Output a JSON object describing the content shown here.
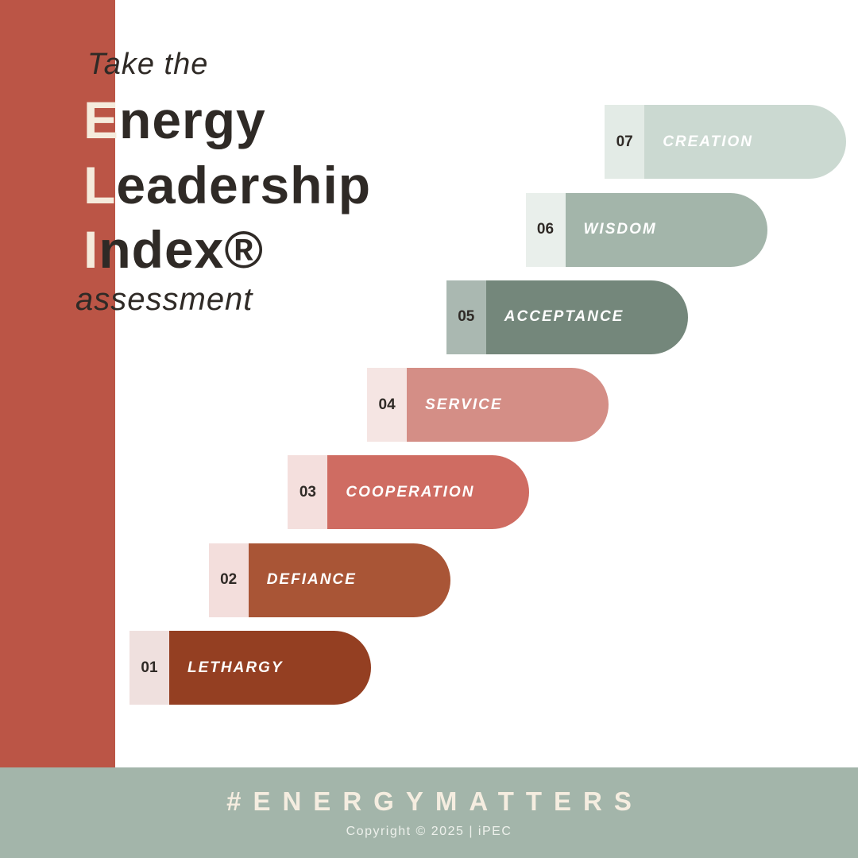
{
  "header": {
    "intro": "Take the",
    "title_lines": [
      "Energy",
      "Leadership",
      "Index®"
    ],
    "outro": "assessment"
  },
  "steps": [
    {
      "number": "01",
      "label": "LETHARGY",
      "color": "#943f22",
      "tab_color": "#efe0de"
    },
    {
      "number": "02",
      "label": "DEFIANCE",
      "color": "#a95536",
      "tab_color": "#f3dedc"
    },
    {
      "number": "03",
      "label": "COOPERATION",
      "color": "#cf6c62",
      "tab_color": "#f4dfdd"
    },
    {
      "number": "04",
      "label": "SERVICE",
      "color": "#d48e86",
      "tab_color": "#f5e5e3"
    },
    {
      "number": "05",
      "label": "ACCEPTANCE",
      "color": "#74877b",
      "tab_color": "#aab8b1"
    },
    {
      "number": "06",
      "label": "WISDOM",
      "color": "#a3b5aa",
      "tab_color": "#e9efeb"
    },
    {
      "number": "07",
      "label": "CREATION",
      "color": "#cbd9d1",
      "tab_color": "#e3ebe6"
    }
  ],
  "footer": {
    "hashtag": "#ENERGYMATTERS",
    "copyright": "Copyright © 2025 | iPEC"
  }
}
